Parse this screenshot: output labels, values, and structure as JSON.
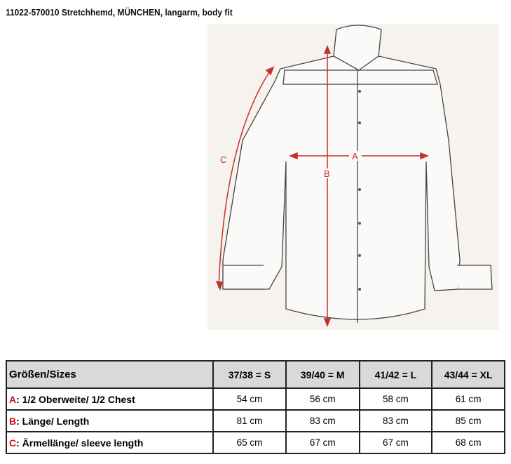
{
  "title": "11022-570010 Stretchhemd, MÜNCHEN, langarm, body fit",
  "diagram": {
    "labels": {
      "a": "A",
      "b": "B",
      "c": "C"
    },
    "arrow_color": "#c4302b"
  },
  "table": {
    "header": {
      "label": "Größen/Sizes",
      "sizes": [
        "37/38 = S",
        "39/40 = M",
        "41/42 = L",
        "43/44 = XL"
      ]
    },
    "rows": [
      {
        "key": "A",
        "label": ": 1/2 Oberweite/  1/2 Chest",
        "values": [
          "54 cm",
          "56 cm",
          "58 cm",
          "61 cm"
        ]
      },
      {
        "key": "B",
        "label": ": Länge/ Length",
        "values": [
          "81 cm",
          "83 cm",
          "83 cm",
          "85 cm"
        ]
      },
      {
        "key": "C",
        "label": ": Ärmellänge/ sleeve length",
        "values": [
          "65 cm",
          "67 cm",
          "67 cm",
          "68 cm"
        ]
      }
    ],
    "key_color": "#d0141c"
  }
}
